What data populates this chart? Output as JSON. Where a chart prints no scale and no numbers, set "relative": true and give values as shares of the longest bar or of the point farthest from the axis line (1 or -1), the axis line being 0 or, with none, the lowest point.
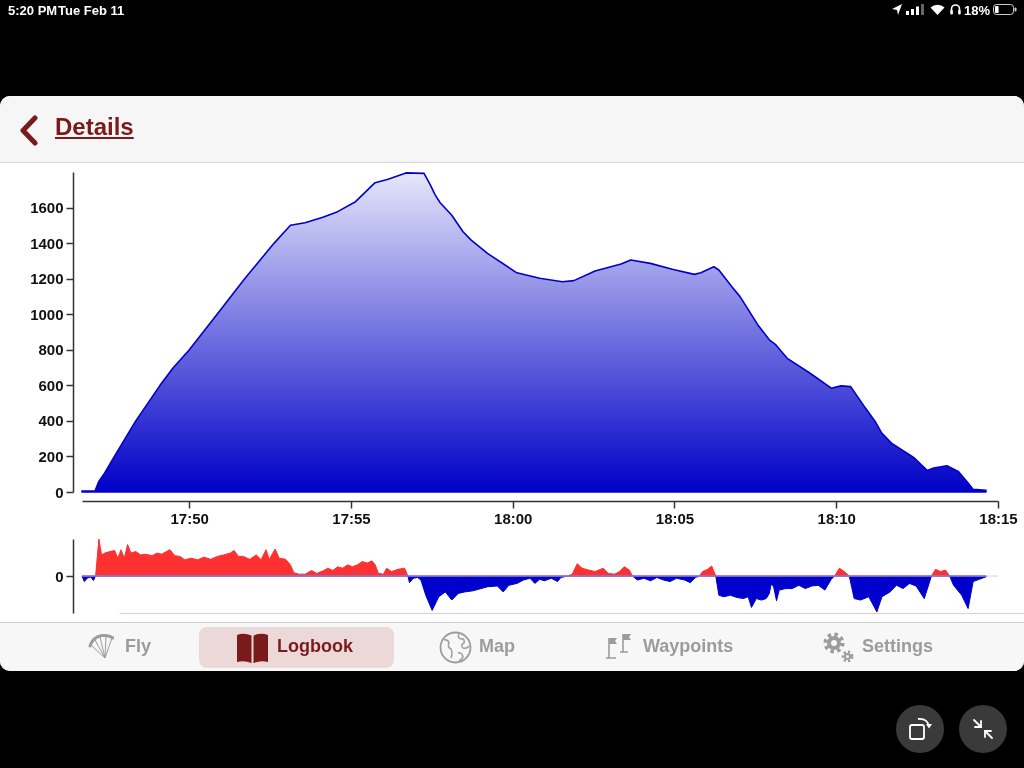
{
  "chart_data": [
    {
      "type": "area",
      "title": "Details",
      "x": [
        17.7781,
        17.7848,
        17.7868,
        17.7898,
        17.7948,
        17.8058,
        17.8183,
        17.825,
        17.8334,
        17.8477,
        17.8619,
        17.8771,
        17.8855,
        17.893,
        17.9022,
        17.9098,
        17.919,
        17.9291,
        17.9358,
        17.945,
        17.9543,
        17.9576,
        17.9601,
        17.9626,
        17.9685,
        17.9744,
        17.9786,
        17.987,
        18.0021,
        18.0139,
        18.0256,
        18.0315,
        18.0424,
        18.0558,
        18.0608,
        18.0709,
        18.0827,
        18.0936,
        18.0969,
        18.1036,
        18.1062,
        18.1129,
        18.1171,
        18.1263,
        18.1322,
        18.1356,
        18.1414,
        18.1532,
        18.1641,
        18.1691,
        18.1741,
        18.1817,
        18.1867,
        18.1901,
        18.1951,
        18.2069,
        18.2136,
        18.2169,
        18.2237,
        18.2295,
        18.2346,
        18.2371,
        18.2438
      ],
      "values": [
        5,
        5,
        60,
        107,
        200,
        400,
        600,
        697,
        800,
        1000,
        1200,
        1400,
        1500,
        1515,
        1545,
        1577,
        1633,
        1740,
        1759,
        1795,
        1792,
        1726,
        1670,
        1627,
        1558,
        1464,
        1417,
        1342,
        1233,
        1202,
        1183,
        1189,
        1243,
        1282,
        1305,
        1286,
        1252,
        1224,
        1233,
        1267,
        1249,
        1155,
        1099,
        940,
        856,
        827,
        752,
        668,
        584,
        597,
        593,
        472,
        397,
        331,
        275,
        191,
        121,
        135,
        148,
        116,
        51,
        15,
        10
      ],
      "color": "#0000c8",
      "xlim": [
        17.7781,
        18.25
      ],
      "ylim": [
        0,
        1800
      ],
      "xticks": [
        {
          "value": 17.833333,
          "label": "17:50"
        },
        {
          "value": 17.916667,
          "label": "17:55"
        },
        {
          "value": 18,
          "label": "18:00"
        },
        {
          "value": 18.083333,
          "label": "18:05"
        },
        {
          "value": 18.166667,
          "label": "18:10"
        },
        {
          "value": 18.25,
          "label": "18:15"
        }
      ],
      "yticks": [
        0,
        200,
        400,
        600,
        800,
        1000,
        1200,
        1400,
        1600
      ],
      "annotations": [
        "5:20 PM",
        "Tue Feb 11",
        "18%",
        "Fly",
        "Logbook",
        "Map",
        "Waypoints",
        "Settings"
      ]
    },
    {
      "type": "area",
      "relative": true,
      "tick_labels": false,
      "x": [
        17.7781,
        17.7793,
        17.781,
        17.7826,
        17.784,
        17.7851,
        17.7868,
        17.7882,
        17.7899,
        17.7924,
        17.7949,
        17.7966,
        17.7982,
        17.7999,
        17.8016,
        17.8033,
        17.8058,
        17.8083,
        17.8108,
        17.8142,
        17.8167,
        17.8192,
        17.8209,
        17.8234,
        17.8259,
        17.8285,
        17.831,
        17.8343,
        17.8377,
        17.841,
        17.8444,
        17.8478,
        17.8511,
        17.8545,
        17.8565,
        17.8587,
        17.8612,
        17.8645,
        17.8679,
        17.8704,
        17.8729,
        17.8746,
        17.8776,
        17.8797,
        17.883,
        17.8855,
        17.8872,
        17.8897,
        17.8931,
        17.8964,
        17.899,
        17.9023,
        17.9048,
        17.9073,
        17.9099,
        17.9124,
        17.9149,
        17.9174,
        17.9199,
        17.9225,
        17.925,
        17.9275,
        17.9292,
        17.9308,
        17.9334,
        17.935,
        17.9376,
        17.9409,
        17.9443,
        17.946,
        17.9468,
        17.9488,
        17.951,
        17.9527,
        17.9552,
        17.9585,
        17.9619,
        17.9653,
        17.9686,
        17.972,
        17.9753,
        17.9795,
        17.9837,
        17.9871,
        17.9921,
        17.9951,
        17.998,
        18.0022,
        18.0055,
        18.0089,
        18.0114,
        18.0139,
        18.0164,
        18.0198,
        18.0231,
        18.0248,
        18.0282,
        18.0307,
        18.0332,
        18.0357,
        18.0391,
        18.0424,
        18.0466,
        18.0492,
        18.0525,
        18.055,
        18.0575,
        18.0601,
        18.0617,
        18.0643,
        18.0676,
        18.071,
        18.0743,
        18.0777,
        18.0811,
        18.0844,
        18.0886,
        18.0915,
        18.0941,
        18.0962,
        18.0978,
        18.1004,
        18.1025,
        18.1046,
        18.1062,
        18.1087,
        18.1121,
        18.1155,
        18.1188,
        18.1213,
        18.123,
        18.1255,
        18.1281,
        18.1306,
        18.1322,
        18.1331,
        18.1344,
        18.1359,
        18.1373,
        18.1406,
        18.144,
        18.1474,
        18.1507,
        18.1541,
        18.1574,
        18.1608,
        18.1641,
        18.1658,
        18.1683,
        18.1708,
        18.1734,
        18.1759,
        18.1792,
        18.1834,
        18.1876,
        18.1902,
        18.1944,
        18.1977,
        18.2011,
        18.2044,
        18.2078,
        18.212,
        18.2145,
        18.2157,
        18.2178,
        18.2204,
        18.2229,
        18.2251,
        18.2271,
        18.2313,
        18.2346,
        18.2372,
        18.2439
      ],
      "series": [
        {
          "color": "#ff3030",
          "values": [
            0,
            0,
            0,
            0,
            0,
            0,
            1.0,
            0.57,
            0.62,
            0.66,
            0.69,
            0.48,
            0.71,
            0.48,
            0.85,
            0.62,
            0.66,
            0.57,
            0.59,
            0.55,
            0.62,
            0.59,
            0.64,
            0.71,
            0.55,
            0.53,
            0.44,
            0.48,
            0.44,
            0.51,
            0.45,
            0.53,
            0.57,
            0.62,
            0.69,
            0.53,
            0.53,
            0.45,
            0.57,
            0.44,
            0.71,
            0.45,
            0.73,
            0.48,
            0.45,
            0.3,
            0.09,
            0.05,
            0.05,
            0.15,
            0.07,
            0.14,
            0.21,
            0.15,
            0.25,
            0.21,
            0.3,
            0.25,
            0.3,
            0.39,
            0.35,
            0.41,
            0.3,
            0.07,
            0.05,
            0.21,
            0.12,
            0.18,
            0.21,
            0,
            0,
            0,
            0,
            0,
            0,
            0,
            0,
            0,
            0,
            0,
            0,
            0,
            0,
            0,
            0,
            0,
            0,
            0,
            0,
            0,
            0,
            0,
            0,
            0,
            0,
            0,
            0,
            0.05,
            0.33,
            0.21,
            0.16,
            0.12,
            0.21,
            0.07,
            0.05,
            0.12,
            0.25,
            0.16,
            0,
            0,
            0,
            0,
            0,
            0,
            0,
            0,
            0,
            0,
            0,
            0,
            0.12,
            0.18,
            0.27,
            0,
            0,
            0,
            0,
            0,
            0,
            0,
            0,
            0,
            0,
            0,
            0,
            0,
            0,
            0,
            0,
            0,
            0,
            0,
            0,
            0,
            0,
            0,
            0,
            0,
            0.21,
            0.12,
            0,
            0,
            0,
            0,
            0,
            0,
            0,
            0,
            0,
            0,
            0,
            0,
            0,
            0,
            0.18,
            0.12,
            0.16,
            0,
            0,
            0,
            0,
            0,
            0
          ]
        },
        {
          "color": "#0000cc",
          "values": [
            0,
            -0.15,
            -0.05,
            -0.03,
            -0.12,
            0,
            0,
            0,
            0,
            0,
            0,
            0,
            0,
            0,
            0,
            0,
            0,
            0,
            0,
            0,
            0,
            0,
            0,
            0,
            0,
            0,
            0,
            0,
            0,
            0,
            0,
            0,
            0,
            0,
            0,
            0,
            0,
            0,
            0,
            0,
            0,
            0,
            0,
            0,
            0,
            0,
            0,
            0,
            0,
            0,
            0,
            0,
            0,
            0,
            0,
            0,
            0,
            0,
            0,
            0,
            0,
            0,
            0,
            0,
            0,
            0,
            0,
            0,
            0,
            0,
            -0.18,
            -0.06,
            -0.04,
            -0.11,
            -0.52,
            -0.93,
            -0.56,
            -0.43,
            -0.65,
            -0.47,
            -0.43,
            -0.4,
            -0.34,
            -0.29,
            -0.27,
            -0.43,
            -0.25,
            -0.2,
            -0.11,
            -0.06,
            -0.2,
            -0.09,
            -0.13,
            -0.06,
            -0.15,
            -0.04,
            0,
            0,
            0,
            0,
            0,
            0,
            0,
            0,
            0,
            0,
            0,
            0,
            0,
            -0.11,
            -0.06,
            -0.13,
            -0.04,
            -0.11,
            -0.15,
            -0.06,
            -0.11,
            -0.18,
            -0.04,
            0,
            0,
            0,
            0,
            0,
            -0.52,
            -0.56,
            -0.52,
            -0.58,
            -0.61,
            -0.56,
            -0.85,
            -0.61,
            -0.65,
            -0.61,
            -0.47,
            -0.22,
            -0.29,
            -0.67,
            -0.38,
            -0.34,
            -0.34,
            -0.25,
            -0.34,
            -0.27,
            -0.25,
            -0.38,
            -0.09,
            0,
            0,
            0,
            0,
            -0.61,
            -0.65,
            -0.56,
            -0.97,
            -0.56,
            -0.43,
            -0.25,
            -0.34,
            -0.2,
            -0.27,
            -0.61,
            -0.2,
            0,
            0,
            0,
            0,
            0,
            -0.25,
            -0.52,
            -0.88,
            -0.15,
            -0.02
          ]
        }
      ],
      "xlim": [
        17.7781,
        18.25
      ],
      "ref_lines": [
        {
          "axis": "y",
          "value": 0,
          "label": "0"
        }
      ]
    }
  ]
}
